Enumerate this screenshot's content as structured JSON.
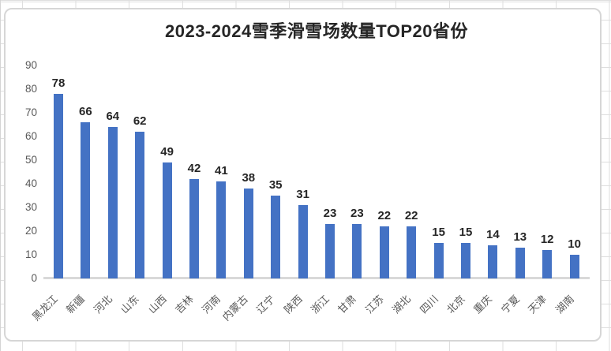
{
  "window": {
    "background": "spreadsheet-grid",
    "gridline_color": "#dedede"
  },
  "chart_data": {
    "type": "bar",
    "title": "2023-2024雪季滑雪场数量TOP20省份",
    "categories": [
      "黑龙江",
      "新疆",
      "河北",
      "山东",
      "山西",
      "吉林",
      "河南",
      "内蒙古",
      "辽宁",
      "陕西",
      "浙江",
      "甘肃",
      "江苏",
      "湖北",
      "四川",
      "北京",
      "重庆",
      "宁夏",
      "天津",
      "湖南"
    ],
    "values": [
      78,
      66,
      64,
      62,
      49,
      42,
      41,
      38,
      35,
      31,
      23,
      23,
      22,
      22,
      15,
      15,
      14,
      13,
      12,
      10
    ],
    "data_labels_shown": true,
    "xlabel": "",
    "ylabel": "",
    "ylim": [
      0,
      90
    ],
    "yticks": [
      0,
      10,
      20,
      30,
      40,
      50,
      60,
      70,
      80,
      90
    ],
    "x_tick_rotation_deg": 45,
    "grid": false,
    "legend": "none",
    "bar_color": "#4472C4",
    "title_color": "#262626",
    "data_label_color": "#262626",
    "tick_label_color": "#595959",
    "axis_line_color": "#D9D9D9"
  }
}
